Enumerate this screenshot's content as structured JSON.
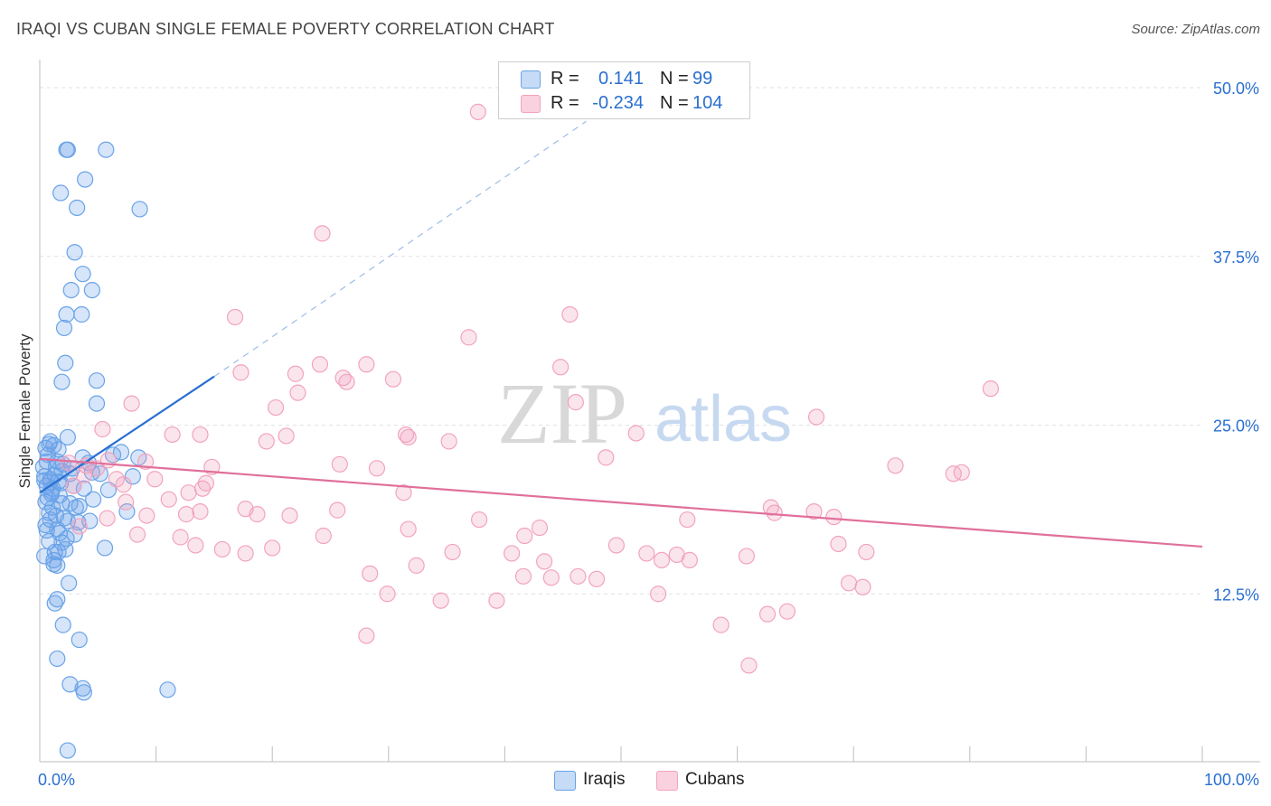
{
  "title": "IRAQI VS CUBAN SINGLE FEMALE POVERTY CORRELATION CHART",
  "source": "Source: ZipAtlas.com",
  "watermark": {
    "zip": "ZIP",
    "atlas": "atlas"
  },
  "legend": {
    "iraqis": {
      "r_label": "R =",
      "r_value": "0.141",
      "n_label": "N =",
      "n_value": "99"
    },
    "cubans": {
      "r_label": "R =",
      "r_value": "-0.234",
      "n_label": "N =",
      "n_value": "104"
    }
  },
  "bottom_legend": {
    "iraqis": "Iraqis",
    "cubans": "Cubans"
  },
  "colors": {
    "iraqis": "#6aa3e8",
    "iraqis_line": "#2a6fd1",
    "cubans": "#f2a3bd",
    "cubans_line": "#e0709a",
    "tick_label": "#2a6fd1"
  },
  "chart_data": {
    "type": "scatter",
    "title": "IRAQI VS CUBAN SINGLE FEMALE POVERTY CORRELATION CHART",
    "xlabel": "",
    "ylabel": "Single Female Poverty",
    "xlim": [
      0,
      100
    ],
    "ylim": [
      0,
      50
    ],
    "x_tick_labels": [
      "0.0%",
      "100.0%"
    ],
    "y_ticks": [
      12.5,
      25.0,
      37.5,
      50.0
    ],
    "y_tick_labels": [
      "12.5%",
      "25.0%",
      "37.5%",
      "50.0%"
    ],
    "grid": true,
    "legend_placement": "top-center",
    "series": [
      {
        "name": "Iraqis",
        "r": 0.141,
        "n": 99,
        "trend": {
          "x0": 0,
          "y0": 20.0,
          "x1": 15,
          "y1": 28.6,
          "extended_to": {
            "x": 47,
            "y": 47.5
          }
        },
        "points": [
          [
            2.3,
            45.4
          ],
          [
            2.4,
            45.4
          ],
          [
            5.7,
            45.4
          ],
          [
            3.9,
            43.2
          ],
          [
            1.8,
            42.2
          ],
          [
            3.2,
            41.1
          ],
          [
            8.6,
            41.0
          ],
          [
            3.0,
            37.8
          ],
          [
            3.7,
            36.2
          ],
          [
            2.7,
            35.0
          ],
          [
            4.5,
            35.0
          ],
          [
            2.3,
            33.2
          ],
          [
            3.6,
            33.2
          ],
          [
            2.1,
            32.2
          ],
          [
            2.2,
            29.6
          ],
          [
            1.9,
            28.2
          ],
          [
            4.9,
            28.3
          ],
          [
            4.9,
            26.6
          ],
          [
            2.4,
            24.1
          ],
          [
            0.8,
            23.6
          ],
          [
            1.2,
            23.5
          ],
          [
            0.5,
            23.3
          ],
          [
            0.7,
            22.8
          ],
          [
            3.7,
            22.6
          ],
          [
            6.3,
            22.8
          ],
          [
            7.0,
            23.0
          ],
          [
            8.5,
            22.6
          ],
          [
            1.5,
            22.3
          ],
          [
            0.3,
            21.9
          ],
          [
            1.9,
            21.6
          ],
          [
            2.6,
            21.4
          ],
          [
            0.4,
            21.2
          ],
          [
            1.3,
            21.3
          ],
          [
            4.5,
            21.5
          ],
          [
            5.2,
            21.4
          ],
          [
            8.0,
            21.2
          ],
          [
            0.9,
            20.8
          ],
          [
            1.6,
            20.8
          ],
          [
            0.6,
            20.5
          ],
          [
            3.8,
            20.3
          ],
          [
            5.9,
            20.2
          ],
          [
            1.0,
            19.9
          ],
          [
            1.7,
            19.8
          ],
          [
            0.5,
            19.3
          ],
          [
            2.6,
            19.2
          ],
          [
            3.1,
            18.9
          ],
          [
            4.6,
            19.5
          ],
          [
            0.8,
            18.5
          ],
          [
            1.4,
            18.3
          ],
          [
            2.1,
            18.1
          ],
          [
            0.5,
            17.6
          ],
          [
            2.4,
            17.9
          ],
          [
            4.3,
            17.9
          ],
          [
            1.7,
            17.0
          ],
          [
            0.6,
            17.2
          ],
          [
            3.0,
            16.9
          ],
          [
            7.5,
            18.6
          ],
          [
            1.9,
            16.3
          ],
          [
            0.4,
            15.3
          ],
          [
            1.3,
            15.6
          ],
          [
            1.6,
            15.6
          ],
          [
            5.6,
            15.9
          ],
          [
            1.2,
            14.7
          ],
          [
            1.5,
            14.6
          ],
          [
            2.5,
            13.3
          ],
          [
            1.5,
            12.1
          ],
          [
            1.3,
            11.8
          ],
          [
            2.0,
            10.2
          ],
          [
            3.4,
            9.1
          ],
          [
            1.5,
            7.7
          ],
          [
            2.6,
            5.8
          ],
          [
            3.7,
            5.5
          ],
          [
            3.8,
            5.2
          ],
          [
            11.0,
            5.4
          ],
          [
            2.4,
            0.9
          ],
          [
            0.9,
            21.0
          ],
          [
            1.1,
            20.3
          ],
          [
            0.7,
            19.6
          ],
          [
            2.0,
            22.1
          ],
          [
            1.4,
            21.9
          ],
          [
            1.8,
            20.7
          ],
          [
            0.6,
            22.3
          ],
          [
            2.9,
            20.5
          ],
          [
            0.9,
            18.0
          ],
          [
            1.5,
            17.3
          ],
          [
            3.4,
            19.0
          ],
          [
            2.2,
            15.8
          ],
          [
            1.2,
            15.0
          ],
          [
            0.9,
            23.8
          ],
          [
            1.6,
            23.2
          ],
          [
            2.8,
            21.8
          ],
          [
            4.2,
            22.2
          ],
          [
            0.4,
            20.9
          ],
          [
            1.1,
            18.9
          ],
          [
            1.9,
            19.2
          ],
          [
            0.8,
            16.4
          ],
          [
            2.3,
            16.6
          ],
          [
            3.3,
            17.8
          ],
          [
            1.0,
            20.1
          ]
        ]
      },
      {
        "name": "Cubans",
        "r": -0.234,
        "n": 104,
        "trend": {
          "x0": 0,
          "y0": 22.5,
          "x1": 100,
          "y1": 16.0
        },
        "points": [
          [
            37.7,
            48.2
          ],
          [
            24.3,
            39.2
          ],
          [
            16.8,
            33.0
          ],
          [
            45.6,
            33.2
          ],
          [
            36.9,
            31.5
          ],
          [
            24.1,
            29.5
          ],
          [
            28.1,
            29.5
          ],
          [
            22.0,
            28.8
          ],
          [
            17.3,
            28.9
          ],
          [
            26.1,
            28.5
          ],
          [
            30.4,
            28.4
          ],
          [
            26.4,
            28.2
          ],
          [
            44.8,
            29.3
          ],
          [
            22.2,
            27.4
          ],
          [
            81.8,
            27.7
          ],
          [
            7.9,
            26.6
          ],
          [
            20.3,
            26.3
          ],
          [
            46.1,
            26.7
          ],
          [
            66.8,
            25.6
          ],
          [
            5.4,
            24.7
          ],
          [
            11.4,
            24.3
          ],
          [
            13.8,
            24.3
          ],
          [
            21.2,
            24.2
          ],
          [
            31.5,
            24.3
          ],
          [
            31.7,
            24.1
          ],
          [
            35.2,
            23.8
          ],
          [
            19.5,
            23.8
          ],
          [
            51.3,
            24.4
          ],
          [
            5.9,
            22.4
          ],
          [
            9.1,
            22.3
          ],
          [
            4.0,
            22.0
          ],
          [
            2.5,
            22.2
          ],
          [
            4.9,
            21.8
          ],
          [
            14.8,
            21.9
          ],
          [
            25.8,
            22.1
          ],
          [
            29.0,
            21.8
          ],
          [
            48.7,
            22.6
          ],
          [
            73.6,
            22.0
          ],
          [
            78.6,
            21.4
          ],
          [
            79.3,
            21.5
          ],
          [
            3.8,
            21.3
          ],
          [
            6.6,
            21.0
          ],
          [
            9.9,
            21.0
          ],
          [
            14.3,
            20.7
          ],
          [
            2.9,
            20.5
          ],
          [
            7.2,
            20.6
          ],
          [
            14.0,
            20.3
          ],
          [
            12.8,
            20.0
          ],
          [
            31.3,
            20.0
          ],
          [
            11.1,
            19.5
          ],
          [
            17.7,
            18.8
          ],
          [
            18.7,
            18.4
          ],
          [
            21.5,
            18.3
          ],
          [
            25.6,
            18.7
          ],
          [
            7.4,
            19.3
          ],
          [
            12.6,
            18.4
          ],
          [
            13.8,
            18.6
          ],
          [
            5.8,
            18.1
          ],
          [
            9.2,
            18.3
          ],
          [
            37.8,
            18.0
          ],
          [
            55.7,
            18.0
          ],
          [
            62.9,
            18.9
          ],
          [
            63.2,
            18.5
          ],
          [
            66.6,
            18.6
          ],
          [
            68.3,
            18.2
          ],
          [
            3.4,
            17.5
          ],
          [
            8.4,
            16.9
          ],
          [
            12.1,
            16.7
          ],
          [
            24.4,
            16.8
          ],
          [
            31.7,
            17.3
          ],
          [
            41.7,
            16.8
          ],
          [
            43.0,
            17.4
          ],
          [
            49.6,
            16.1
          ],
          [
            52.2,
            15.5
          ],
          [
            68.7,
            16.2
          ],
          [
            15.7,
            15.8
          ],
          [
            17.7,
            15.5
          ],
          [
            20.0,
            15.9
          ],
          [
            35.5,
            15.6
          ],
          [
            40.6,
            15.5
          ],
          [
            43.4,
            14.9
          ],
          [
            53.5,
            15.0
          ],
          [
            55.9,
            15.0
          ],
          [
            60.8,
            15.3
          ],
          [
            71.1,
            15.6
          ],
          [
            32.4,
            14.6
          ],
          [
            28.4,
            14.0
          ],
          [
            41.6,
            13.8
          ],
          [
            44.0,
            13.7
          ],
          [
            46.3,
            13.8
          ],
          [
            69.6,
            13.3
          ],
          [
            70.8,
            13.0
          ],
          [
            29.9,
            12.5
          ],
          [
            34.5,
            12.0
          ],
          [
            53.2,
            12.5
          ],
          [
            62.6,
            11.0
          ],
          [
            64.3,
            11.2
          ],
          [
            58.6,
            10.2
          ],
          [
            28.1,
            9.4
          ],
          [
            61.0,
            7.2
          ],
          [
            54.8,
            15.4
          ],
          [
            47.9,
            13.6
          ],
          [
            39.3,
            12.0
          ],
          [
            13.4,
            16.1
          ]
        ]
      }
    ]
  }
}
